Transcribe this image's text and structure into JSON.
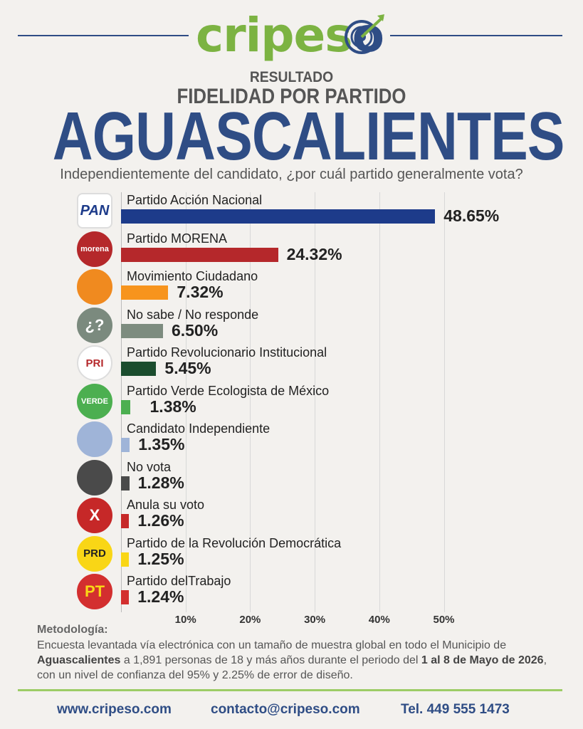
{
  "brand": {
    "name_part1": "cripes",
    "name_part2": "o"
  },
  "header": {
    "line1": "RESULTADO",
    "line2": "FIDELIDAD POR PARTIDO",
    "line3": "AGUASCALIENTES",
    "question": "Independientemente del candidato, ¿por cuál partido generalmente vota?"
  },
  "logos": [
    {
      "text": "PAN",
      "icon": "pan-logo-icon",
      "bg": "#ffffff",
      "fg": "#1d3b8a"
    },
    {
      "text": "morena",
      "icon": "morena-logo-icon",
      "bg": "#b5282b",
      "fg": "#ffffff"
    },
    {
      "text": "",
      "icon": "movimiento-ciudadano-logo-icon",
      "bg": "#f08a1f",
      "fg": "#ffffff"
    },
    {
      "text": "¿?",
      "icon": "question-icon",
      "bg": "#7b8a7e",
      "fg": "#ffffff"
    },
    {
      "text": "PRI",
      "icon": "pri-logo-icon",
      "bg": "#ffffff",
      "fg": "#b5282b"
    },
    {
      "text": "VERDE",
      "icon": "verde-logo-icon",
      "bg": "#4caf50",
      "fg": "#ffffff"
    },
    {
      "text": "",
      "icon": "person-icon",
      "bg": "#9fb4d8",
      "fg": "#ffffff"
    },
    {
      "text": "",
      "icon": "ballot-icon",
      "bg": "#4a4a4a",
      "fg": "#ffffff"
    },
    {
      "text": "X",
      "icon": "cross-icon",
      "bg": "#c62828",
      "fg": "#ffffff"
    },
    {
      "text": "PRD",
      "icon": "prd-logo-icon",
      "bg": "#f9d616",
      "fg": "#222222"
    },
    {
      "text": "PT",
      "icon": "pt-logo-icon",
      "bg": "#d32f2f",
      "fg": "#f9d616"
    }
  ],
  "chart_data": {
    "type": "bar",
    "orientation": "horizontal",
    "categories": [
      "Partido Acción Nacional",
      "Partido MORENA",
      "Movimiento Ciudadano",
      "No sabe / No responde",
      "Partido Revolucionario Institucional",
      "Partido Verde Ecologista de México",
      "Candidato Independiente",
      "No vota",
      "Anula su voto",
      "Partido de la Revolución Democrática",
      "Partido delTrabajo"
    ],
    "values": [
      48.65,
      24.32,
      7.32,
      6.5,
      5.45,
      1.38,
      1.35,
      1.28,
      1.26,
      1.25,
      1.24
    ],
    "value_labels": [
      "48.65%",
      "24.32%",
      "7.32%",
      "6.50%",
      "5.45%",
      "1.38%",
      "1.35%",
      "1.28%",
      "1.26%",
      "1.25%",
      "1.24%"
    ],
    "colors": [
      "#1d3b8a",
      "#b5282b",
      "#f7941d",
      "#7d8c7f",
      "#1b4d2e",
      "#4caf50",
      "#9fb4d8",
      "#4a4a4a",
      "#c62828",
      "#f9d616",
      "#d32f2f"
    ],
    "xticks": [
      10,
      20,
      30,
      40,
      50
    ],
    "xtick_labels": [
      "10%",
      "20%",
      "30%",
      "40%",
      "50%"
    ],
    "xlim": [
      0,
      50
    ],
    "grid": true
  },
  "methodology": {
    "title": "Metodología:",
    "text1": "Encuesta levantada vía electrónica con un tamaño de muestra global en todo el Municipio de ",
    "bold1": "Aguascalientes",
    "text2": " a 1,891 personas de 18 y más años durante el periodo del ",
    "bold2": "1 al 8 de Mayo de 2026",
    "text3": ", con un nivel de confianza del 95% y 2.25% de error de diseño."
  },
  "footer": {
    "web": "www.cripeso.com",
    "email": "contacto@cripeso.com",
    "phone": "Tel. 449 555 1473"
  }
}
